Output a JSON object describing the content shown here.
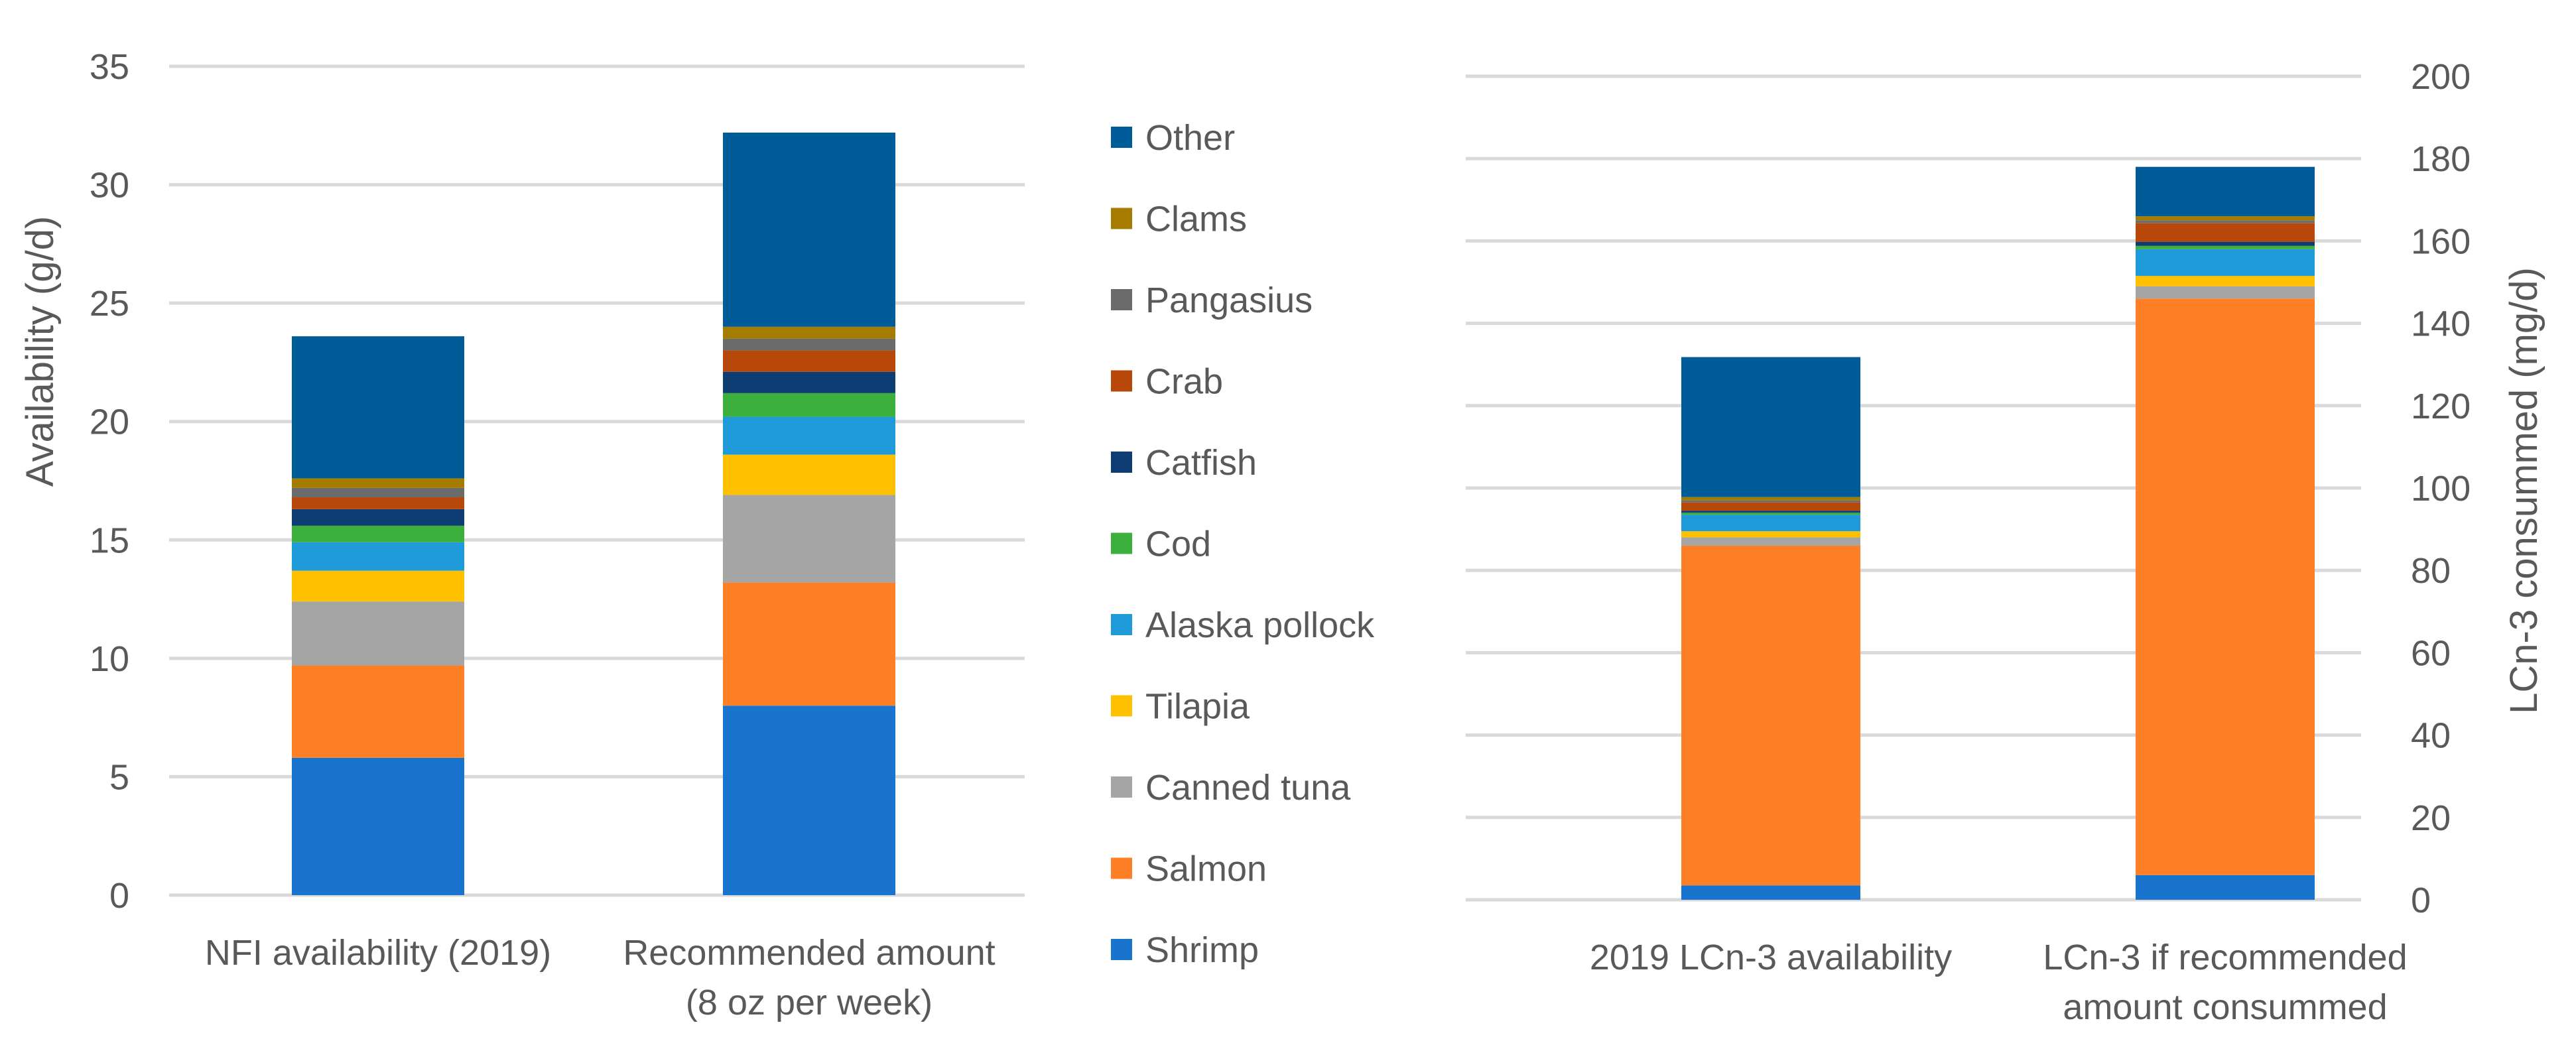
{
  "chart_data": [
    {
      "type": "bar",
      "stacked": true,
      "ylabel": "Availability (g/d)",
      "ylim": [
        0,
        35
      ],
      "yticks": [
        "0",
        "5",
        "10",
        "15",
        "20",
        "25",
        "30",
        "35"
      ],
      "categories": [
        [
          "NFI availability (2019)"
        ],
        [
          "Recommended amount",
          "(8 oz per week)"
        ]
      ],
      "series": [
        {
          "name": "Shrimp",
          "values": [
            5.8,
            8.0
          ]
        },
        {
          "name": "Salmon",
          "values": [
            3.9,
            5.2
          ]
        },
        {
          "name": "Canned tuna",
          "values": [
            2.7,
            3.7
          ]
        },
        {
          "name": "Tilapia",
          "values": [
            1.3,
            1.7
          ]
        },
        {
          "name": "Alaska pollock",
          "values": [
            1.2,
            1.6
          ]
        },
        {
          "name": "Cod",
          "values": [
            0.7,
            1.0
          ]
        },
        {
          "name": "Catfish",
          "values": [
            0.7,
            0.9
          ]
        },
        {
          "name": "Crab",
          "values": [
            0.5,
            0.9
          ]
        },
        {
          "name": "Pangasius",
          "values": [
            0.4,
            0.5
          ]
        },
        {
          "name": "Clams",
          "values": [
            0.4,
            0.5
          ]
        },
        {
          "name": "Other",
          "values": [
            6.0,
            8.2
          ]
        }
      ]
    },
    {
      "type": "bar",
      "stacked": true,
      "ylabel": "LCn-3 consummed (mg/d)",
      "ylim": [
        0,
        200
      ],
      "yticks": [
        "0",
        "20",
        "40",
        "60",
        "80",
        "100",
        "120",
        "140",
        "160",
        "180",
        "200"
      ],
      "categories": [
        [
          "2019 LCn-3 availability"
        ],
        [
          "LCn-3 if recommended",
          "amount consummed"
        ]
      ],
      "series": [
        {
          "name": "Shrimp",
          "values": [
            3.5,
            6.0
          ]
        },
        {
          "name": "Salmon",
          "values": [
            82.5,
            140.0
          ]
        },
        {
          "name": "Canned tuna",
          "values": [
            2.0,
            3.0
          ]
        },
        {
          "name": "Tilapia",
          "values": [
            1.5,
            2.5
          ]
        },
        {
          "name": "Alaska pollock",
          "values": [
            4.0,
            6.5
          ]
        },
        {
          "name": "Cod",
          "values": [
            0.5,
            0.8
          ]
        },
        {
          "name": "Catfish",
          "values": [
            0.5,
            1.0
          ]
        },
        {
          "name": "Crab",
          "values": [
            2.0,
            4.5
          ]
        },
        {
          "name": "Pangasius",
          "values": [
            0.5,
            0.7
          ]
        },
        {
          "name": "Clams",
          "values": [
            0.8,
            1.0
          ]
        },
        {
          "name": "Other",
          "values": [
            34.0,
            12.0
          ]
        }
      ]
    }
  ],
  "legend": {
    "entries": [
      "Other",
      "Clams",
      "Pangasius",
      "Crab",
      "Catfish",
      "Cod",
      "Alaska pollock",
      "Tilapia",
      "Canned tuna",
      "Salmon",
      "Shrimp"
    ]
  },
  "colors": {
    "Shrimp": "#1874CD",
    "Salmon": "#FF7F27",
    "Canned tuna": "#A5A5A5",
    "Tilapia": "#FFC000",
    "Alaska pollock": "#1F9BDA",
    "Cod": "#3CAF3C",
    "Catfish": "#0E3D73",
    "Crab": "#B8470A",
    "Pangasius": "#6B6B6B",
    "Clams": "#A67C00",
    "Other": "#005C99"
  }
}
